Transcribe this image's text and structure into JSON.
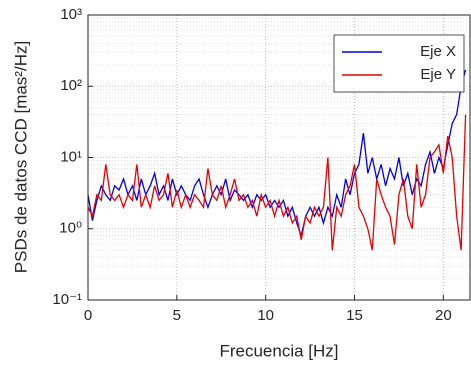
{
  "chart_data": {
    "type": "line",
    "xlabel": "Frecuencia [Hz]",
    "ylabel": "PSDs de datos CCD [mas²/Hz]",
    "x": [
      0,
      0.25,
      0.5,
      0.75,
      1,
      1.25,
      1.5,
      1.75,
      2,
      2.25,
      2.5,
      2.75,
      3,
      3.25,
      3.5,
      3.75,
      4,
      4.25,
      4.5,
      4.75,
      5,
      5.25,
      5.5,
      5.75,
      6,
      6.25,
      6.5,
      6.75,
      7,
      7.25,
      7.5,
      7.75,
      8,
      8.25,
      8.5,
      8.75,
      9,
      9.25,
      9.5,
      9.75,
      10,
      10.25,
      10.5,
      10.75,
      11,
      11.25,
      11.5,
      11.75,
      12,
      12.25,
      12.5,
      12.75,
      13,
      13.25,
      13.5,
      13.75,
      14,
      14.25,
      14.5,
      14.75,
      15,
      15.25,
      15.5,
      15.75,
      16,
      16.25,
      16.5,
      16.75,
      17,
      17.25,
      17.5,
      17.75,
      18,
      18.25,
      18.5,
      18.75,
      19,
      19.25,
      19.5,
      19.75,
      20,
      20.25,
      20.5,
      20.75,
      21,
      21.25
    ],
    "series": [
      {
        "name": "Eje X",
        "color": "#0000e6",
        "values": [
          3,
          1.3,
          2.5,
          4,
          3,
          2.5,
          4,
          3.5,
          5,
          3,
          4,
          2.5,
          5,
          3,
          4,
          6,
          3,
          4,
          2.5,
          5,
          3,
          4,
          3,
          2.5,
          4,
          5,
          3,
          2,
          3,
          4,
          3,
          5,
          2.5,
          3.5,
          3,
          2.5,
          3,
          2,
          3,
          2.5,
          3,
          2,
          2.5,
          2,
          2.5,
          1.5,
          2,
          1.2,
          0.8,
          1.5,
          2,
          1.5,
          2,
          1.2,
          2,
          1.5,
          3,
          2,
          5,
          3,
          6,
          8,
          22,
          6,
          10,
          5,
          8,
          4,
          7,
          5,
          10,
          4,
          6,
          3,
          5,
          4,
          8,
          12,
          6,
          10,
          7,
          15,
          30,
          40,
          100,
          170
        ]
      },
      {
        "name": "Eje Y",
        "color": "#e60000",
        "values": [
          2,
          1.5,
          3,
          2.5,
          8,
          3,
          2.5,
          3,
          2,
          3,
          2.5,
          8,
          2,
          3,
          2,
          4,
          2.5,
          3,
          6,
          2,
          3.5,
          2,
          3,
          2,
          3,
          2.5,
          2,
          7,
          3,
          2.5,
          4,
          2,
          3,
          5,
          2.5,
          3,
          2,
          2.5,
          1.5,
          3,
          2,
          2.5,
          1.5,
          2.5,
          1.5,
          2,
          1.2,
          1.5,
          0.7,
          1.5,
          1.2,
          2,
          1.5,
          2,
          10,
          0.5,
          2,
          1.5,
          3,
          4,
          8,
          2,
          1.5,
          1,
          0.5,
          5,
          3,
          2,
          1.5,
          0.6,
          3,
          5,
          1.5,
          1,
          8,
          2,
          3,
          10,
          12,
          15,
          6,
          20,
          10,
          1.5,
          0.5,
          40
        ]
      }
    ],
    "xlim": [
      0,
      21.5
    ],
    "xticks": [
      0,
      5,
      10,
      15,
      20
    ],
    "ylim": [
      0.1,
      1000
    ],
    "log_y": true,
    "yticks": [
      {
        "value": 0.1,
        "label": "10⁻¹"
      },
      {
        "value": 1,
        "label": "10⁰"
      },
      {
        "value": 10,
        "label": "10¹"
      },
      {
        "value": 100,
        "label": "10²"
      },
      {
        "value": 1000,
        "label": "10³"
      }
    ],
    "grid": true,
    "legend": "upper right"
  }
}
